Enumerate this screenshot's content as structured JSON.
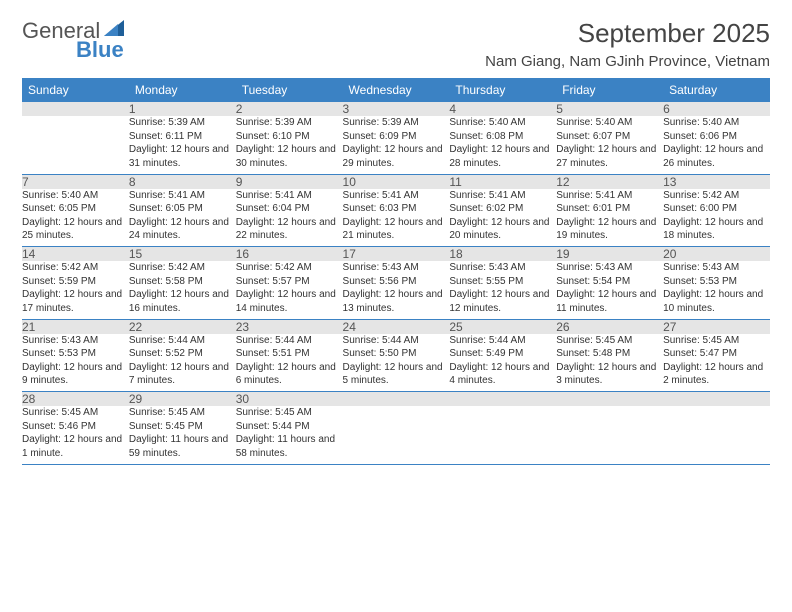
{
  "logo": {
    "text1": "General",
    "text2": "Blue"
  },
  "title": "September 2025",
  "location": "Nam Giang, Nam GJinh Province, Vietnam",
  "colors": {
    "header_bg": "#3b82c4",
    "header_text": "#ffffff",
    "daynum_bg": "#e5e5e5",
    "border": "#3b82c4",
    "logo_accent": "#3b82c4"
  },
  "day_headers": [
    "Sunday",
    "Monday",
    "Tuesday",
    "Wednesday",
    "Thursday",
    "Friday",
    "Saturday"
  ],
  "weeks": [
    {
      "nums": [
        "",
        "1",
        "2",
        "3",
        "4",
        "5",
        "6"
      ],
      "cells": [
        null,
        {
          "sunrise": "Sunrise: 5:39 AM",
          "sunset": "Sunset: 6:11 PM",
          "daylight": "Daylight: 12 hours and 31 minutes."
        },
        {
          "sunrise": "Sunrise: 5:39 AM",
          "sunset": "Sunset: 6:10 PM",
          "daylight": "Daylight: 12 hours and 30 minutes."
        },
        {
          "sunrise": "Sunrise: 5:39 AM",
          "sunset": "Sunset: 6:09 PM",
          "daylight": "Daylight: 12 hours and 29 minutes."
        },
        {
          "sunrise": "Sunrise: 5:40 AM",
          "sunset": "Sunset: 6:08 PM",
          "daylight": "Daylight: 12 hours and 28 minutes."
        },
        {
          "sunrise": "Sunrise: 5:40 AM",
          "sunset": "Sunset: 6:07 PM",
          "daylight": "Daylight: 12 hours and 27 minutes."
        },
        {
          "sunrise": "Sunrise: 5:40 AM",
          "sunset": "Sunset: 6:06 PM",
          "daylight": "Daylight: 12 hours and 26 minutes."
        }
      ]
    },
    {
      "nums": [
        "7",
        "8",
        "9",
        "10",
        "11",
        "12",
        "13"
      ],
      "cells": [
        {
          "sunrise": "Sunrise: 5:40 AM",
          "sunset": "Sunset: 6:05 PM",
          "daylight": "Daylight: 12 hours and 25 minutes."
        },
        {
          "sunrise": "Sunrise: 5:41 AM",
          "sunset": "Sunset: 6:05 PM",
          "daylight": "Daylight: 12 hours and 24 minutes."
        },
        {
          "sunrise": "Sunrise: 5:41 AM",
          "sunset": "Sunset: 6:04 PM",
          "daylight": "Daylight: 12 hours and 22 minutes."
        },
        {
          "sunrise": "Sunrise: 5:41 AM",
          "sunset": "Sunset: 6:03 PM",
          "daylight": "Daylight: 12 hours and 21 minutes."
        },
        {
          "sunrise": "Sunrise: 5:41 AM",
          "sunset": "Sunset: 6:02 PM",
          "daylight": "Daylight: 12 hours and 20 minutes."
        },
        {
          "sunrise": "Sunrise: 5:41 AM",
          "sunset": "Sunset: 6:01 PM",
          "daylight": "Daylight: 12 hours and 19 minutes."
        },
        {
          "sunrise": "Sunrise: 5:42 AM",
          "sunset": "Sunset: 6:00 PM",
          "daylight": "Daylight: 12 hours and 18 minutes."
        }
      ]
    },
    {
      "nums": [
        "14",
        "15",
        "16",
        "17",
        "18",
        "19",
        "20"
      ],
      "cells": [
        {
          "sunrise": "Sunrise: 5:42 AM",
          "sunset": "Sunset: 5:59 PM",
          "daylight": "Daylight: 12 hours and 17 minutes."
        },
        {
          "sunrise": "Sunrise: 5:42 AM",
          "sunset": "Sunset: 5:58 PM",
          "daylight": "Daylight: 12 hours and 16 minutes."
        },
        {
          "sunrise": "Sunrise: 5:42 AM",
          "sunset": "Sunset: 5:57 PM",
          "daylight": "Daylight: 12 hours and 14 minutes."
        },
        {
          "sunrise": "Sunrise: 5:43 AM",
          "sunset": "Sunset: 5:56 PM",
          "daylight": "Daylight: 12 hours and 13 minutes."
        },
        {
          "sunrise": "Sunrise: 5:43 AM",
          "sunset": "Sunset: 5:55 PM",
          "daylight": "Daylight: 12 hours and 12 minutes."
        },
        {
          "sunrise": "Sunrise: 5:43 AM",
          "sunset": "Sunset: 5:54 PM",
          "daylight": "Daylight: 12 hours and 11 minutes."
        },
        {
          "sunrise": "Sunrise: 5:43 AM",
          "sunset": "Sunset: 5:53 PM",
          "daylight": "Daylight: 12 hours and 10 minutes."
        }
      ]
    },
    {
      "nums": [
        "21",
        "22",
        "23",
        "24",
        "25",
        "26",
        "27"
      ],
      "cells": [
        {
          "sunrise": "Sunrise: 5:43 AM",
          "sunset": "Sunset: 5:53 PM",
          "daylight": "Daylight: 12 hours and 9 minutes."
        },
        {
          "sunrise": "Sunrise: 5:44 AM",
          "sunset": "Sunset: 5:52 PM",
          "daylight": "Daylight: 12 hours and 7 minutes."
        },
        {
          "sunrise": "Sunrise: 5:44 AM",
          "sunset": "Sunset: 5:51 PM",
          "daylight": "Daylight: 12 hours and 6 minutes."
        },
        {
          "sunrise": "Sunrise: 5:44 AM",
          "sunset": "Sunset: 5:50 PM",
          "daylight": "Daylight: 12 hours and 5 minutes."
        },
        {
          "sunrise": "Sunrise: 5:44 AM",
          "sunset": "Sunset: 5:49 PM",
          "daylight": "Daylight: 12 hours and 4 minutes."
        },
        {
          "sunrise": "Sunrise: 5:45 AM",
          "sunset": "Sunset: 5:48 PM",
          "daylight": "Daylight: 12 hours and 3 minutes."
        },
        {
          "sunrise": "Sunrise: 5:45 AM",
          "sunset": "Sunset: 5:47 PM",
          "daylight": "Daylight: 12 hours and 2 minutes."
        }
      ]
    },
    {
      "nums": [
        "28",
        "29",
        "30",
        "",
        "",
        "",
        ""
      ],
      "cells": [
        {
          "sunrise": "Sunrise: 5:45 AM",
          "sunset": "Sunset: 5:46 PM",
          "daylight": "Daylight: 12 hours and 1 minute."
        },
        {
          "sunrise": "Sunrise: 5:45 AM",
          "sunset": "Sunset: 5:45 PM",
          "daylight": "Daylight: 11 hours and 59 minutes."
        },
        {
          "sunrise": "Sunrise: 5:45 AM",
          "sunset": "Sunset: 5:44 PM",
          "daylight": "Daylight: 11 hours and 58 minutes."
        },
        null,
        null,
        null,
        null
      ]
    }
  ]
}
